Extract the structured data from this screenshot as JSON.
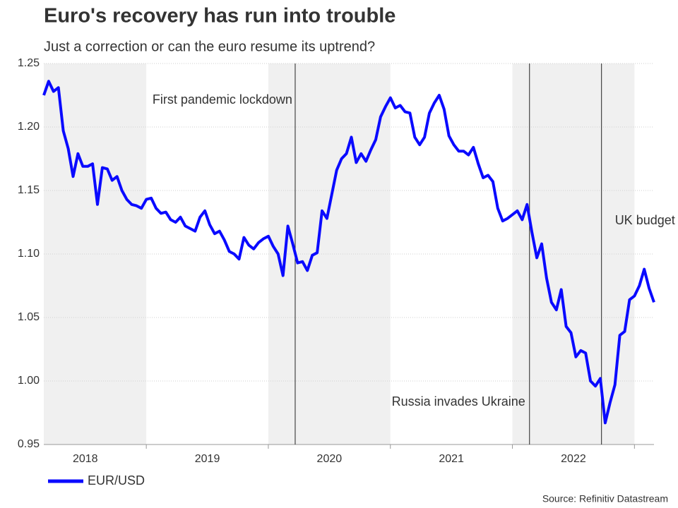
{
  "chart_data": {
    "type": "line",
    "title": "Euro's recovery has run into trouble",
    "subtitle": "Just a correction or can the euro resume its uptrend?",
    "source": "Source: Refinitiv Datastream",
    "x": [
      2018.16,
      2018.2,
      2018.24,
      2018.28,
      2018.32,
      2018.36,
      2018.4,
      2018.44,
      2018.48,
      2018.52,
      2018.56,
      2018.6,
      2018.64,
      2018.68,
      2018.72,
      2018.76,
      2018.8,
      2018.84,
      2018.88,
      2018.92,
      2018.96,
      2019.0,
      2019.04,
      2019.08,
      2019.12,
      2019.16,
      2019.2,
      2019.24,
      2019.28,
      2019.32,
      2019.36,
      2019.4,
      2019.44,
      2019.48,
      2019.52,
      2019.56,
      2019.6,
      2019.64,
      2019.68,
      2019.72,
      2019.76,
      2019.8,
      2019.84,
      2019.88,
      2019.92,
      2019.96,
      2020.0,
      2020.04,
      2020.08,
      2020.12,
      2020.16,
      2020.2,
      2020.24,
      2020.28,
      2020.32,
      2020.36,
      2020.4,
      2020.44,
      2020.48,
      2020.52,
      2020.56,
      2020.6,
      2020.64,
      2020.68,
      2020.72,
      2020.76,
      2020.8,
      2020.84,
      2020.88,
      2020.92,
      2020.96,
      2021.0,
      2021.04,
      2021.08,
      2021.12,
      2021.16,
      2021.2,
      2021.24,
      2021.28,
      2021.32,
      2021.36,
      2021.4,
      2021.44,
      2021.48,
      2021.52,
      2021.56,
      2021.6,
      2021.64,
      2021.68,
      2021.72,
      2021.76,
      2021.8,
      2021.84,
      2021.88,
      2021.92,
      2021.96,
      2022.0,
      2022.04,
      2022.08,
      2022.12,
      2022.16,
      2022.2,
      2022.24,
      2022.28,
      2022.32,
      2022.36,
      2022.4,
      2022.44,
      2022.48,
      2022.52,
      2022.56,
      2022.6,
      2022.64,
      2022.68,
      2022.72,
      2022.76,
      2022.8,
      2022.84,
      2022.88,
      2022.92,
      2022.96,
      2023.0,
      2023.04,
      2023.08,
      2023.12,
      2023.16
    ],
    "series": [
      {
        "name": "EUR/USD",
        "color": "#0a0aff",
        "values": [
          1.225,
          1.236,
          1.228,
          1.231,
          1.197,
          1.183,
          1.161,
          1.179,
          1.169,
          1.169,
          1.171,
          1.139,
          1.168,
          1.167,
          1.158,
          1.161,
          1.15,
          1.143,
          1.139,
          1.138,
          1.136,
          1.143,
          1.144,
          1.136,
          1.132,
          1.133,
          1.127,
          1.125,
          1.129,
          1.122,
          1.12,
          1.118,
          1.129,
          1.134,
          1.123,
          1.116,
          1.118,
          1.111,
          1.102,
          1.1,
          1.096,
          1.113,
          1.107,
          1.104,
          1.109,
          1.112,
          1.114,
          1.106,
          1.1,
          1.083,
          1.122,
          1.108,
          1.093,
          1.094,
          1.087,
          1.099,
          1.101,
          1.134,
          1.128,
          1.147,
          1.166,
          1.175,
          1.179,
          1.192,
          1.172,
          1.179,
          1.173,
          1.182,
          1.19,
          1.208,
          1.216,
          1.223,
          1.215,
          1.217,
          1.212,
          1.211,
          1.192,
          1.186,
          1.192,
          1.211,
          1.219,
          1.225,
          1.214,
          1.193,
          1.186,
          1.181,
          1.181,
          1.178,
          1.184,
          1.171,
          1.16,
          1.162,
          1.157,
          1.136,
          1.126,
          1.128,
          1.131,
          1.134,
          1.127,
          1.139,
          1.117,
          1.097,
          1.108,
          1.081,
          1.062,
          1.056,
          1.072,
          1.043,
          1.038,
          1.019,
          1.024,
          1.022,
          1.0,
          0.996,
          1.002,
          0.967,
          0.983,
          0.997,
          1.036,
          1.039,
          1.064,
          1.067,
          1.075,
          1.088,
          1.073,
          1.062
        ]
      }
    ],
    "xlim": [
      2018.16,
      2023.16
    ],
    "xticks": [
      2019,
      2020,
      2021,
      2022,
      2023
    ],
    "year_labels": [
      2018,
      2019,
      2020,
      2021,
      2022
    ],
    "shaded_years": [
      2018,
      2020,
      2022
    ],
    "ylim": [
      0.95,
      1.25
    ],
    "yticks": [
      0.95,
      {
        "value": 1,
        "label": "1.00"
      },
      1.05,
      {
        "value": 1.1,
        "label": "1.10"
      },
      1.15,
      {
        "value": 1.2,
        "label": "1.20"
      },
      1.25
    ],
    "grid": true,
    "events": [
      {
        "x": 2020.22,
        "label": "First pandemic lockdown"
      },
      {
        "x": 2022.14,
        "label": "Russia invades Ukraine"
      },
      {
        "x": 2022.73,
        "label": "UK budget crisis"
      }
    ],
    "legend": "bottom-left"
  }
}
